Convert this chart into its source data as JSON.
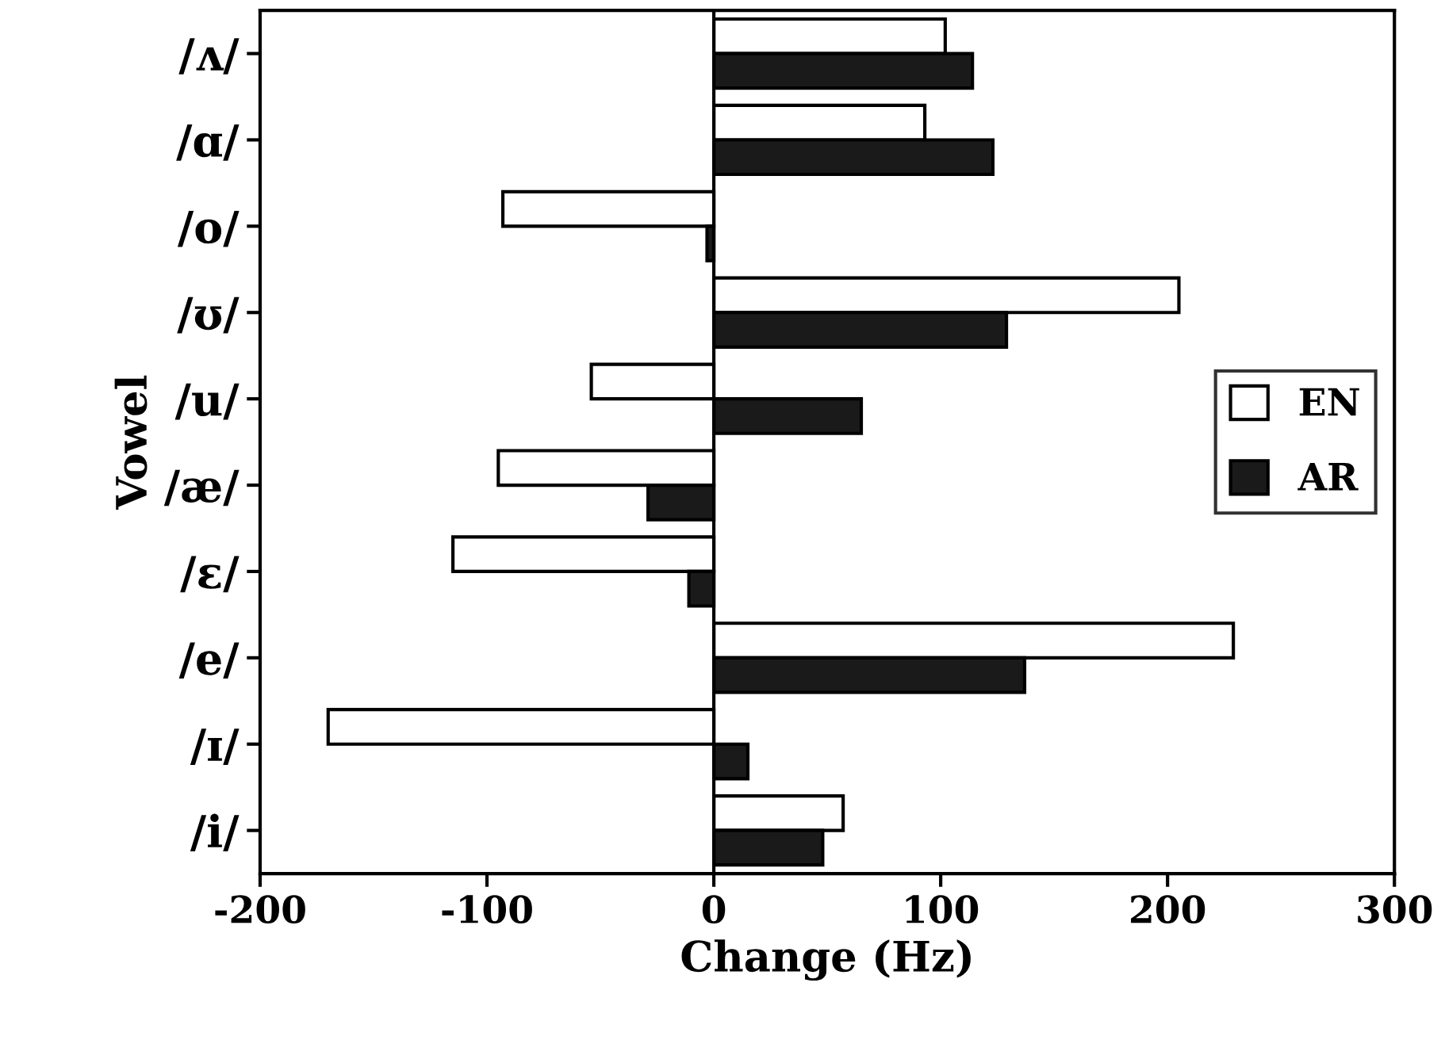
{
  "chart_data": {
    "type": "bar",
    "orientation": "horizontal",
    "xlabel": "Change (Hz)",
    "ylabel": "Vowel",
    "categories": [
      "/ʌ/",
      "/ɑ/",
      "/o/",
      "/ʊ/",
      "/u/",
      "/æ/",
      "/ɛ/",
      "/e/",
      "/ɪ/",
      "/i/"
    ],
    "series": [
      {
        "name": "EN",
        "color": "#ffffff",
        "values": [
          102,
          93,
          -93,
          205,
          -54,
          -95,
          -115,
          229,
          -170,
          57
        ]
      },
      {
        "name": "AR",
        "color": "#1a1a1a",
        "values": [
          114,
          123,
          -3,
          129,
          65,
          -29,
          -11,
          137,
          15,
          48
        ]
      }
    ],
    "xlim": [
      -200,
      300
    ],
    "xticks": [
      -200,
      -100,
      0,
      100,
      200,
      300
    ],
    "ref_lines": [
      {
        "axis": "x",
        "value": 0,
        "label": null
      }
    ],
    "grid": false,
    "legend": "right"
  }
}
